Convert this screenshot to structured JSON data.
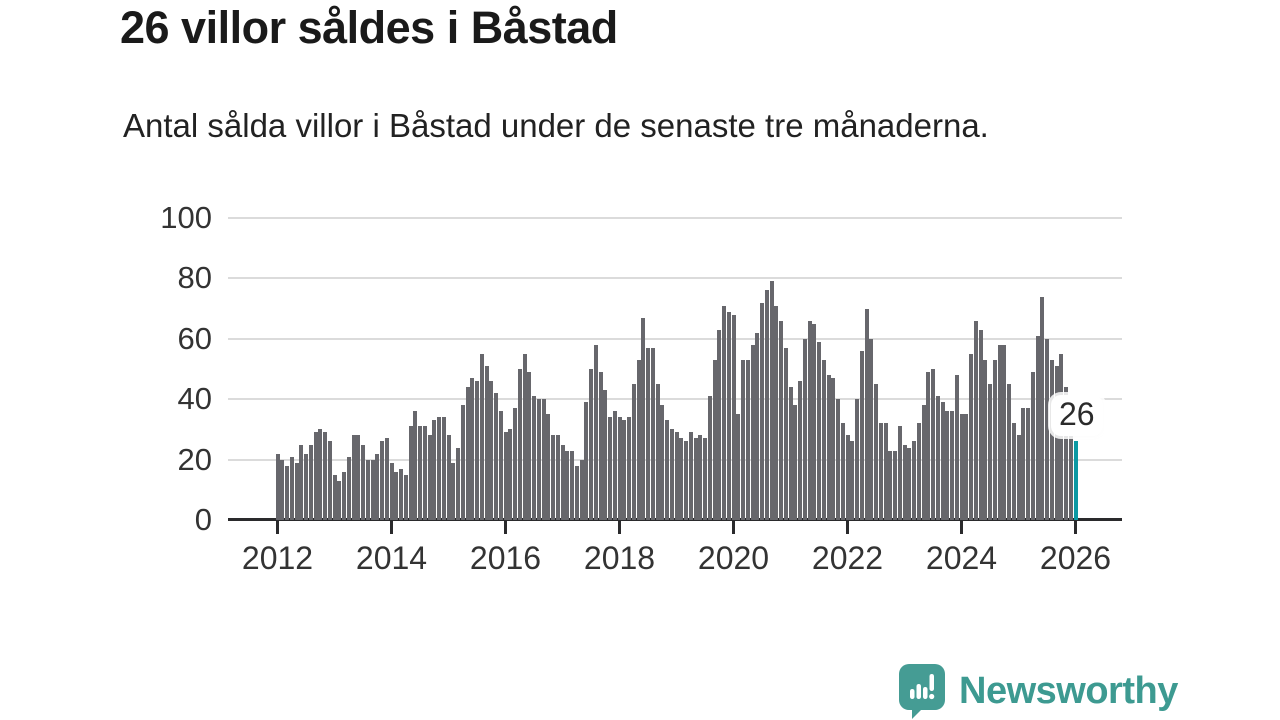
{
  "chart_data": {
    "type": "bar",
    "title": "26 villor såldes i Båstad",
    "subtitle": "Antal sålda villor i Båstad under de senaste tre månaderna.",
    "frequency": "monthly",
    "x_start_year": 2012,
    "x_tick_years": [
      2012,
      2014,
      2016,
      2018,
      2020,
      2022,
      2024,
      2026
    ],
    "y_ticks": [
      0,
      20,
      40,
      60,
      80,
      100
    ],
    "ylim": [
      0,
      100
    ],
    "grid": true,
    "bar_color": "#67676c",
    "highlight_color": "#0c99a3",
    "highlight_last": true,
    "highlight_label": "26",
    "highlight_value": 26,
    "values": [
      22,
      20,
      18,
      21,
      19,
      25,
      22,
      25,
      29,
      30,
      29,
      26,
      15,
      13,
      16,
      21,
      28,
      28,
      25,
      20,
      20,
      22,
      26,
      27,
      19,
      16,
      17,
      15,
      31,
      36,
      31,
      31,
      28,
      33,
      34,
      34,
      28,
      19,
      24,
      38,
      44,
      47,
      46,
      55,
      51,
      46,
      42,
      36,
      29,
      30,
      37,
      50,
      55,
      49,
      41,
      40,
      40,
      35,
      28,
      28,
      25,
      23,
      23,
      18,
      20,
      39,
      50,
      58,
      49,
      43,
      34,
      36,
      34,
      33,
      34,
      45,
      53,
      67,
      57,
      57,
      45,
      38,
      33,
      30,
      29,
      27,
      26,
      29,
      27,
      28,
      27,
      41,
      53,
      63,
      71,
      69,
      68,
      35,
      53,
      53,
      58,
      62,
      72,
      76,
      79,
      71,
      66,
      57,
      44,
      38,
      46,
      60,
      66,
      65,
      59,
      53,
      48,
      47,
      40,
      32,
      28,
      26,
      40,
      56,
      70,
      60,
      45,
      32,
      32,
      23,
      23,
      31,
      25,
      24,
      26,
      32,
      38,
      49,
      50,
      41,
      39,
      36,
      36,
      48,
      35,
      35,
      55,
      66,
      63,
      53,
      45,
      53,
      58,
      58,
      45,
      32,
      28,
      37,
      37,
      49,
      61,
      74,
      60,
      53,
      51,
      55,
      44,
      29,
      26
    ]
  },
  "branding": {
    "name": "Newsworthy",
    "color": "#3d9a91",
    "icon": "newsworthy-speech-bubble-bar-chart-icon"
  }
}
